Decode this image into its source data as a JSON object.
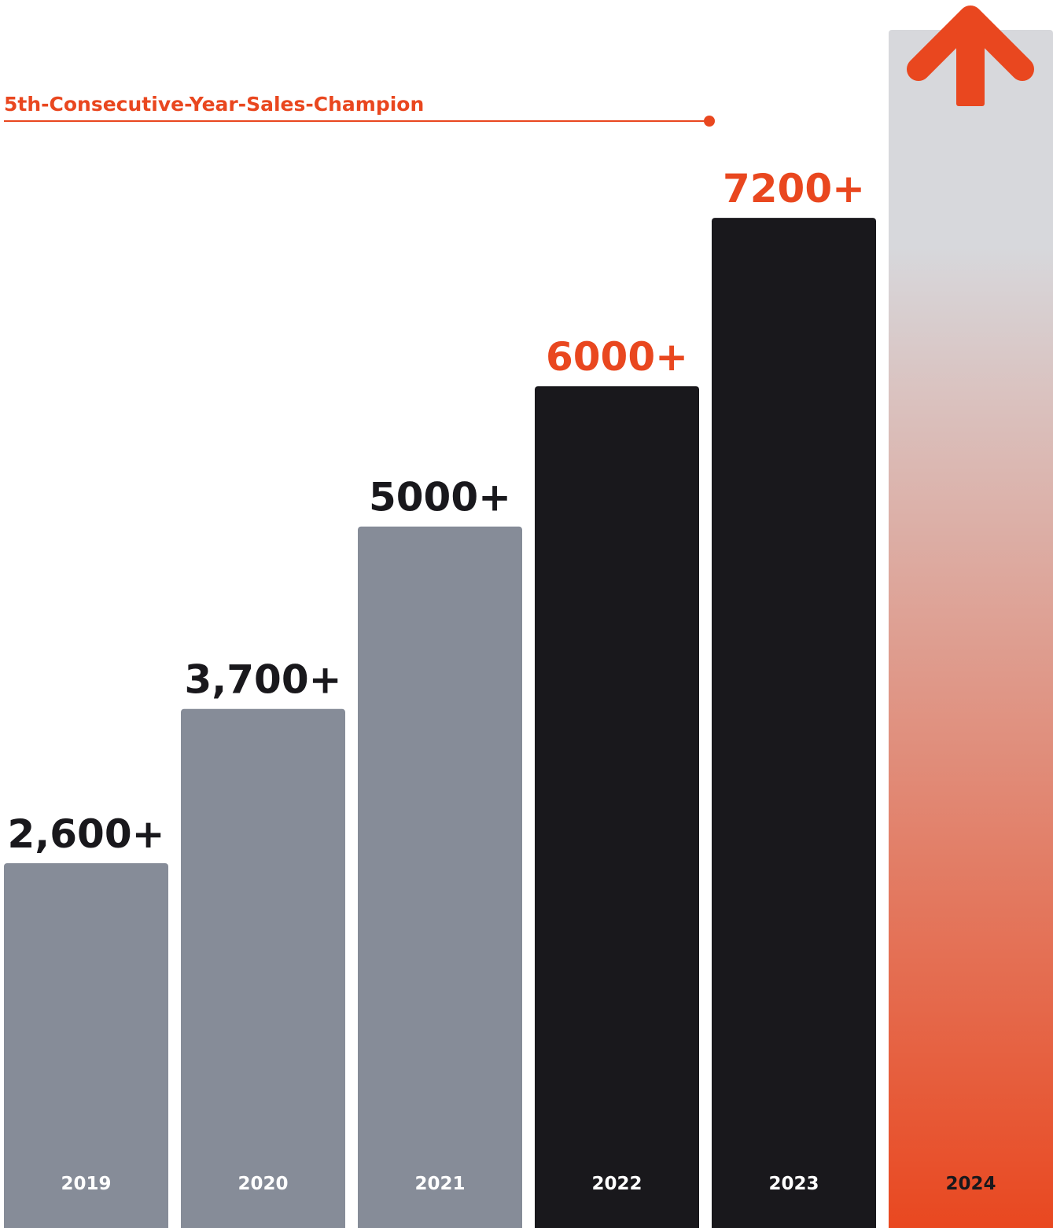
{
  "chart_data": {
    "type": "bar",
    "annotation": "5th-Consecutive-Year-Sales-Champion",
    "categories": [
      "2019",
      "2020",
      "2021",
      "2022",
      "2023",
      "2024"
    ],
    "values": [
      2600,
      3700,
      5000,
      6000,
      7200,
      null
    ],
    "value_labels": [
      "2,600+",
      "3,700+",
      "5000+",
      "6000+",
      "7200+",
      ""
    ],
    "ylim": [
      0,
      7800
    ],
    "grid": false,
    "legend": "none",
    "colors": {
      "past": "#868c98",
      "recent": "#19181c",
      "highlight": "#e9471f",
      "dark_text": "#19181c",
      "white_text": "#ffffff",
      "future_top": "#d7d8dc",
      "future_bottom": "#e9471f"
    },
    "bar_styles": [
      "past",
      "past",
      "past",
      "recent",
      "recent",
      "future"
    ],
    "label_colors": [
      "dark_text",
      "dark_text",
      "dark_text",
      "highlight",
      "highlight",
      "dark_text"
    ],
    "future_icon": "arrow-up-icon"
  }
}
